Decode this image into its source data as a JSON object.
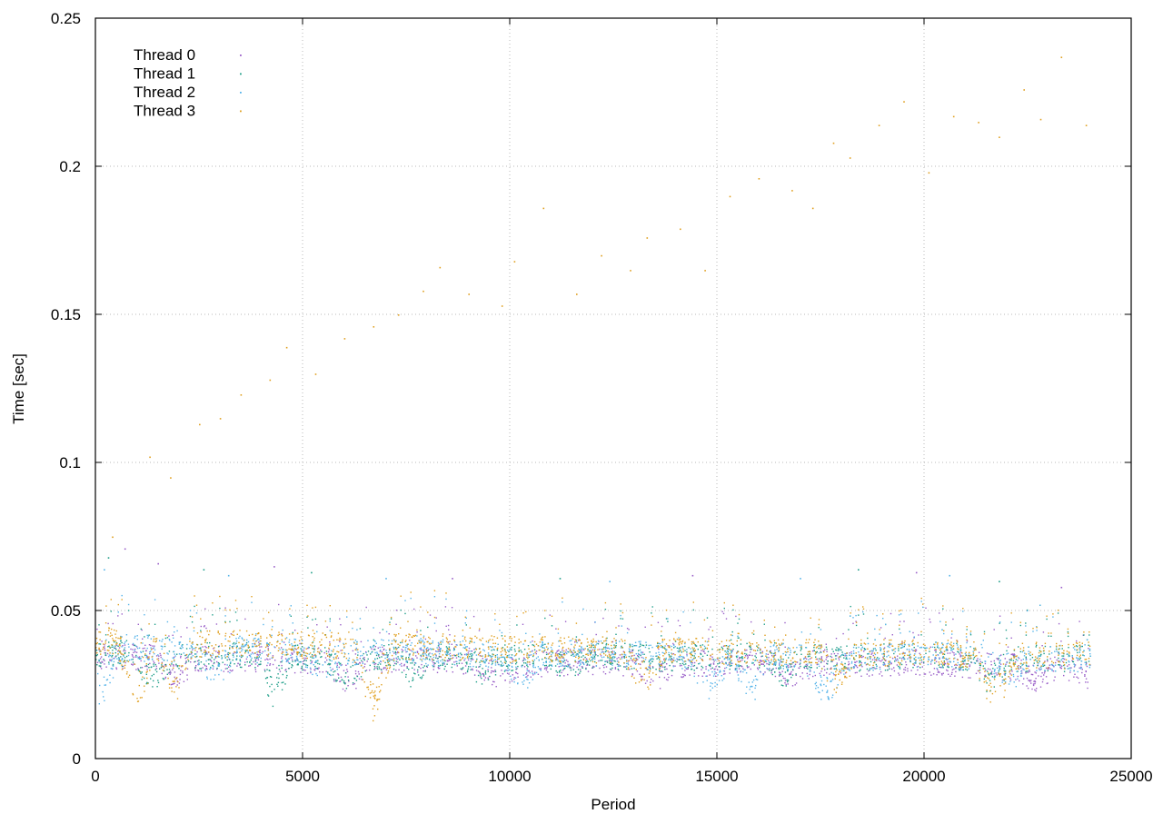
{
  "chart_data": {
    "type": "scatter",
    "title": "",
    "xlabel": "Period",
    "ylabel": "Time [sec]",
    "xlim": [
      0,
      25000
    ],
    "ylim": [
      0,
      0.25
    ],
    "x_ticks": [
      0,
      5000,
      10000,
      15000,
      20000,
      25000
    ],
    "y_ticks": [
      0,
      0.05,
      0.1,
      0.15,
      0.2,
      0.25
    ],
    "x_tick_labels": [
      "0",
      "5000",
      "10000",
      "15000",
      "20000",
      "25000"
    ],
    "y_tick_labels": [
      "0",
      "0.05",
      "0.1",
      "0.15",
      "0.2",
      "0.25"
    ],
    "grid": true,
    "legend_position": "top-left",
    "series": [
      {
        "name": "Thread 0",
        "color": "#9a5fc8",
        "baseline": [
          [
            0,
            0.035
          ],
          [
            2000,
            0.034
          ],
          [
            4000,
            0.034
          ],
          [
            6000,
            0.033
          ],
          [
            8000,
            0.034
          ],
          [
            10000,
            0.032
          ],
          [
            12000,
            0.033
          ],
          [
            14000,
            0.032
          ],
          [
            16000,
            0.033
          ],
          [
            18000,
            0.032
          ],
          [
            20000,
            0.033
          ],
          [
            22000,
            0.031
          ],
          [
            24000,
            0.032
          ]
        ],
        "low_dips": [
          [
            1900,
            0.026
          ],
          [
            6100,
            0.025
          ],
          [
            9700,
            0.026
          ],
          [
            13500,
            0.026
          ],
          [
            16800,
            0.026
          ],
          [
            22700,
            0.026
          ],
          [
            23900,
            0.025
          ]
        ],
        "outliers": [
          [
            700,
            0.071
          ],
          [
            1500,
            0.066
          ],
          [
            4300,
            0.065
          ],
          [
            8600,
            0.061
          ],
          [
            14400,
            0.062
          ],
          [
            19800,
            0.063
          ],
          [
            23300,
            0.058
          ]
        ]
      },
      {
        "name": "Thread 1",
        "color": "#1f9e89",
        "baseline": [
          [
            0,
            0.036
          ],
          [
            2000,
            0.035
          ],
          [
            4000,
            0.035
          ],
          [
            6000,
            0.034
          ],
          [
            8000,
            0.035
          ],
          [
            10000,
            0.034
          ],
          [
            12000,
            0.035
          ],
          [
            14000,
            0.034
          ],
          [
            16000,
            0.035
          ],
          [
            18000,
            0.034
          ],
          [
            20000,
            0.035
          ],
          [
            22000,
            0.034
          ],
          [
            24000,
            0.034
          ]
        ],
        "low_dips": [
          [
            1400,
            0.024
          ],
          [
            4300,
            0.021
          ],
          [
            6000,
            0.025
          ],
          [
            7700,
            0.027
          ],
          [
            9300,
            0.029
          ],
          [
            11400,
            0.03
          ],
          [
            16600,
            0.027
          ],
          [
            21600,
            0.025
          ]
        ],
        "outliers": [
          [
            300,
            0.068
          ],
          [
            2600,
            0.064
          ],
          [
            5200,
            0.063
          ],
          [
            11200,
            0.061
          ],
          [
            18400,
            0.064
          ],
          [
            21800,
            0.06
          ]
        ]
      },
      {
        "name": "Thread 2",
        "color": "#56b4e9",
        "baseline": [
          [
            0,
            0.038
          ],
          [
            2000,
            0.037
          ],
          [
            4000,
            0.037
          ],
          [
            6000,
            0.036
          ],
          [
            8000,
            0.036
          ],
          [
            10000,
            0.035
          ],
          [
            12000,
            0.036
          ],
          [
            14000,
            0.035
          ],
          [
            16000,
            0.035
          ],
          [
            18000,
            0.034
          ],
          [
            20000,
            0.035
          ],
          [
            22000,
            0.034
          ],
          [
            24000,
            0.034
          ]
        ],
        "low_dips": [
          [
            100,
            0.018
          ],
          [
            2900,
            0.026
          ],
          [
            5500,
            0.027
          ],
          [
            10300,
            0.026
          ],
          [
            14800,
            0.022
          ],
          [
            15800,
            0.021
          ],
          [
            17600,
            0.017
          ],
          [
            22000,
            0.025
          ]
        ],
        "outliers": [
          [
            200,
            0.064
          ],
          [
            3200,
            0.062
          ],
          [
            7000,
            0.061
          ],
          [
            12400,
            0.06
          ],
          [
            17000,
            0.061
          ],
          [
            20600,
            0.062
          ]
        ]
      },
      {
        "name": "Thread 3",
        "color": "#e0a020",
        "baseline": [
          [
            0,
            0.04
          ],
          [
            2000,
            0.039
          ],
          [
            4000,
            0.039
          ],
          [
            6000,
            0.038
          ],
          [
            8000,
            0.038
          ],
          [
            10000,
            0.037
          ],
          [
            12000,
            0.037
          ],
          [
            14000,
            0.037
          ],
          [
            16000,
            0.036
          ],
          [
            18000,
            0.036
          ],
          [
            20000,
            0.036
          ],
          [
            22000,
            0.035
          ],
          [
            24000,
            0.035
          ]
        ],
        "low_dips": [
          [
            1000,
            0.019
          ],
          [
            1900,
            0.021
          ],
          [
            6700,
            0.015
          ],
          [
            13200,
            0.024
          ],
          [
            17900,
            0.024
          ],
          [
            21700,
            0.017
          ]
        ],
        "outliers": [
          [
            400,
            0.075
          ],
          [
            1300,
            0.102
          ],
          [
            1800,
            0.095
          ],
          [
            2500,
            0.113
          ],
          [
            3000,
            0.115
          ],
          [
            3500,
            0.123
          ],
          [
            4200,
            0.128
          ],
          [
            4600,
            0.139
          ],
          [
            5300,
            0.13
          ],
          [
            6000,
            0.142
          ],
          [
            6700,
            0.146
          ],
          [
            7300,
            0.15
          ],
          [
            7900,
            0.158
          ],
          [
            8300,
            0.166
          ],
          [
            9000,
            0.157
          ],
          [
            9800,
            0.153
          ],
          [
            10100,
            0.168
          ],
          [
            10800,
            0.186
          ],
          [
            11600,
            0.157
          ],
          [
            12200,
            0.17
          ],
          [
            12900,
            0.165
          ],
          [
            13300,
            0.176
          ],
          [
            14100,
            0.179
          ],
          [
            14700,
            0.165
          ],
          [
            15300,
            0.19
          ],
          [
            16000,
            0.196
          ],
          [
            16800,
            0.192
          ],
          [
            17300,
            0.186
          ],
          [
            17800,
            0.208
          ],
          [
            18200,
            0.203
          ],
          [
            18900,
            0.214
          ],
          [
            19500,
            0.222
          ],
          [
            20100,
            0.198
          ],
          [
            20700,
            0.217
          ],
          [
            21300,
            0.215
          ],
          [
            21800,
            0.21
          ],
          [
            22400,
            0.226
          ],
          [
            22800,
            0.216
          ],
          [
            23300,
            0.237
          ],
          [
            23900,
            0.214
          ]
        ]
      }
    ]
  }
}
